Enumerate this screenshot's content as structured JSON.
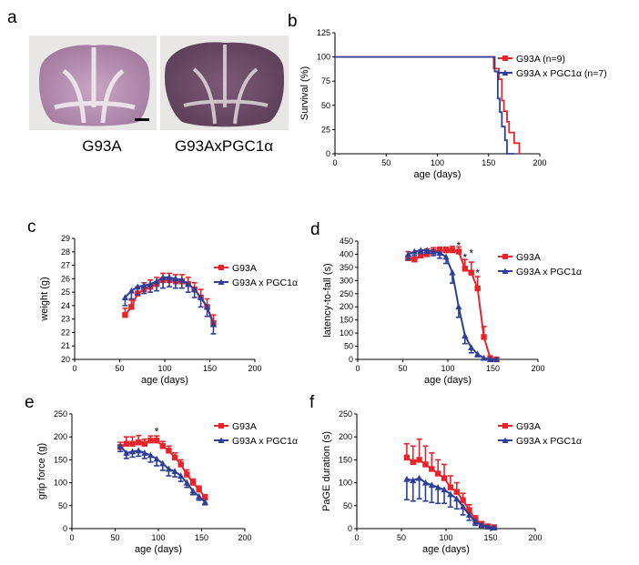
{
  "panel_a": {
    "label": "a",
    "images": [
      {
        "caption": "G93A"
      },
      {
        "caption": "G93AxPGC1α"
      }
    ]
  },
  "colors": {
    "g93a": "#e8242a",
    "pgc": "#2c3f99"
  },
  "chart_data": [
    {
      "id": "b",
      "panel_label": "b",
      "type": "line",
      "style": "step",
      "ylabel": "Survival (%)",
      "xlabel": "age (days)",
      "xlim": [
        0,
        200
      ],
      "ylim": [
        0,
        125
      ],
      "xticks": [
        0,
        50,
        100,
        150,
        200
      ],
      "yticks": [
        0,
        25,
        50,
        75,
        100,
        125
      ],
      "legend": "top-right",
      "series": [
        {
          "name": "G93A",
          "n_label": "(n=9)",
          "color_key": "g93a",
          "x": [
            0,
            150,
            155,
            160,
            163,
            165,
            168,
            170,
            175,
            180
          ],
          "y": [
            100,
            100,
            88,
            77,
            55,
            44,
            33,
            22,
            11,
            0
          ]
        },
        {
          "name": "G93A x PGC1α",
          "n_label": "(n=7)",
          "color_key": "pgc",
          "x": [
            0,
            148,
            156,
            159,
            161,
            163,
            166,
            168,
            175
          ],
          "y": [
            100,
            100,
            85,
            57,
            43,
            28,
            14,
            0,
            0
          ]
        }
      ]
    },
    {
      "id": "c",
      "panel_label": "c",
      "type": "line",
      "style": "errorbar",
      "ylabel": "weight (g)",
      "xlabel": "age (days)",
      "xlim": [
        0,
        200
      ],
      "ylim": [
        20,
        29
      ],
      "xticks": [
        0,
        50,
        100,
        150,
        200
      ],
      "yticks": [
        20,
        21,
        22,
        23,
        24,
        25,
        26,
        27,
        28,
        29
      ],
      "legend": "right",
      "x": [
        56,
        63,
        70,
        77,
        84,
        91,
        98,
        105,
        112,
        119,
        126,
        133,
        140,
        147,
        154
      ],
      "series": [
        {
          "name": "G93A",
          "color_key": "g93a",
          "values": [
            23.3,
            23.9,
            24.9,
            25.2,
            25.4,
            25.6,
            25.9,
            25.9,
            25.8,
            25.8,
            25.6,
            25.2,
            24.6,
            23.9,
            22.7
          ],
          "err": [
            0.5,
            0.5,
            0.5,
            0.5,
            0.5,
            0.5,
            0.5,
            0.5,
            0.5,
            0.5,
            0.5,
            0.5,
            0.6,
            0.6,
            0.6
          ]
        },
        {
          "name": "G93A x PGC1α",
          "color_key": "pgc",
          "values": [
            24.6,
            25.1,
            25.4,
            25.5,
            25.6,
            25.8,
            26.1,
            26.1,
            26.0,
            25.9,
            25.6,
            25.2,
            24.6,
            23.9,
            22.6
          ],
          "err": [
            0.6,
            0.6,
            0.6,
            0.6,
            0.6,
            0.7,
            0.8,
            0.7,
            0.7,
            0.6,
            0.6,
            0.6,
            0.7,
            0.7,
            0.7
          ]
        }
      ]
    },
    {
      "id": "d",
      "panel_label": "d",
      "type": "line",
      "style": "errorbar",
      "ylabel": "latency-to-fall (s)",
      "xlabel": "age (days)",
      "xlim": [
        0,
        200
      ],
      "ylim": [
        0,
        450
      ],
      "xticks": [
        0,
        50,
        100,
        150,
        200
      ],
      "yticks": [
        0,
        50,
        100,
        150,
        200,
        250,
        300,
        350,
        400,
        450
      ],
      "legend": "right",
      "x": [
        56,
        63,
        70,
        77,
        84,
        91,
        98,
        105,
        112,
        119,
        126,
        133,
        140,
        147,
        154
      ],
      "series": [
        {
          "name": "G93A",
          "color_key": "g93a",
          "values": [
            385,
            380,
            395,
            400,
            410,
            415,
            415,
            415,
            410,
            345,
            330,
            270,
            85,
            5,
            0
          ],
          "err": [
            25,
            25,
            20,
            20,
            15,
            12,
            12,
            15,
            18,
            35,
            40,
            45,
            40,
            5,
            0
          ]
        },
        {
          "name": "G93A x PGC1α",
          "color_key": "pgc",
          "values": [
            400,
            410,
            415,
            415,
            410,
            405,
            390,
            330,
            200,
            90,
            45,
            20,
            5,
            0,
            0
          ],
          "err": [
            20,
            15,
            12,
            12,
            15,
            20,
            25,
            40,
            40,
            30,
            20,
            10,
            5,
            0,
            0
          ]
        }
      ],
      "annotations": [
        {
          "text": "*",
          "x": 112,
          "y": 440
        },
        {
          "text": "*",
          "x": 119,
          "y": 395
        },
        {
          "text": "*",
          "x": 126,
          "y": 410
        },
        {
          "text": "*",
          "x": 133,
          "y": 335
        }
      ]
    },
    {
      "id": "e",
      "panel_label": "e",
      "type": "line",
      "style": "errorbar",
      "ylabel": "grip force (g)",
      "xlabel": "age (days)",
      "xlim": [
        0,
        200
      ],
      "ylim": [
        0,
        250
      ],
      "xticks": [
        0,
        50,
        100,
        150,
        200
      ],
      "yticks": [
        0,
        50,
        100,
        150,
        200,
        250
      ],
      "legend": "top-right",
      "x": [
        56,
        63,
        70,
        77,
        84,
        91,
        98,
        105,
        112,
        119,
        126,
        133,
        140,
        147,
        154
      ],
      "series": [
        {
          "name": "G93A",
          "color_key": "g93a",
          "values": [
            178,
            185,
            185,
            188,
            185,
            192,
            192,
            180,
            170,
            155,
            140,
            118,
            100,
            85,
            68
          ],
          "err": [
            10,
            15,
            15,
            15,
            10,
            10,
            10,
            10,
            10,
            10,
            10,
            10,
            8,
            8,
            6
          ]
        },
        {
          "name": "G93A x PGC1α",
          "color_key": "pgc",
          "values": [
            180,
            165,
            168,
            170,
            165,
            160,
            152,
            142,
            130,
            125,
            115,
            100,
            82,
            70,
            58
          ],
          "err": [
            12,
            12,
            12,
            12,
            12,
            15,
            15,
            15,
            15,
            12,
            12,
            10,
            8,
            8,
            6
          ]
        }
      ],
      "annotations": [
        {
          "text": "*",
          "x": 98,
          "y": 215
        }
      ]
    },
    {
      "id": "f",
      "panel_label": "f",
      "type": "line",
      "style": "errorbar",
      "ylabel": "PaGE duration (s)",
      "xlabel": "age (days)",
      "xlim": [
        0,
        200
      ],
      "ylim": [
        0,
        250
      ],
      "xticks": [
        0,
        50,
        100,
        150,
        200
      ],
      "yticks": [
        0,
        50,
        100,
        150,
        200,
        250
      ],
      "legend": "top-right",
      "x": [
        56,
        63,
        70,
        77,
        84,
        91,
        98,
        105,
        112,
        119,
        126,
        133,
        140,
        147,
        154
      ],
      "series": [
        {
          "name": "G93A",
          "color_key": "g93a",
          "values": [
            155,
            145,
            150,
            140,
            130,
            120,
            110,
            90,
            80,
            62,
            40,
            20,
            10,
            5,
            3
          ],
          "err": [
            30,
            35,
            45,
            40,
            35,
            30,
            30,
            25,
            20,
            15,
            12,
            8,
            5,
            3,
            2
          ]
        },
        {
          "name": "G93A x PGC1α",
          "color_key": "pgc",
          "values": [
            108,
            105,
            110,
            100,
            95,
            90,
            85,
            75,
            65,
            48,
            30,
            15,
            8,
            4,
            2
          ],
          "err": [
            45,
            45,
            45,
            40,
            38,
            35,
            30,
            28,
            22,
            18,
            12,
            8,
            5,
            3,
            2
          ]
        }
      ]
    }
  ]
}
